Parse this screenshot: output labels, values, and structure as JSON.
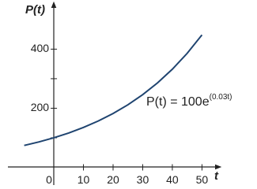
{
  "chart_data": {
    "type": "line",
    "y_label": "P(t)",
    "x_label": "t",
    "annotation": {
      "text": "P(t) = 100e",
      "superscript": "(0.03t)"
    },
    "x": [
      -10,
      -5,
      0,
      5,
      10,
      15,
      20,
      25,
      30,
      35,
      40,
      45,
      50
    ],
    "series": [
      {
        "color": "#1f4470",
        "values": [
          74.08,
          86.07,
          100,
          116.18,
          134.99,
          156.83,
          182.21,
          211.7,
          245.96,
          285.77,
          332.01,
          385.74,
          448.17
        ]
      }
    ],
    "xlim": [
      -15.5,
      55.5
    ],
    "ylim": [
      -60,
      545
    ],
    "xticks": [
      0,
      10,
      20,
      30,
      40,
      50
    ],
    "yticks": [
      200,
      400
    ],
    "yminor": [
      100,
      300
    ]
  }
}
